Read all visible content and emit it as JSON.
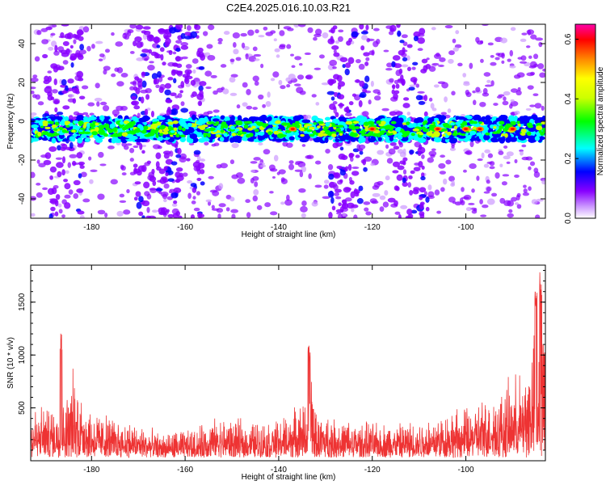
{
  "title": "C2E4.2025.016.10.03.R21",
  "chart_data": [
    {
      "type": "heatmap",
      "xlabel": "Height of straight line (km)",
      "ylabel": "Frequency (Hz)",
      "xlim": [
        -193,
        -83
      ],
      "ylim": [
        -50,
        50
      ],
      "x_ticks": [
        "-180",
        "-160",
        "-140",
        "-120",
        "-100"
      ],
      "y_ticks": [
        "-40",
        "-20",
        "0",
        "20",
        "40"
      ],
      "colorbar": {
        "label": "Normalized spectral amplitude",
        "range": [
          0.0,
          0.65
        ],
        "ticks": [
          "0.0",
          "0.2",
          "0.4",
          "0.6"
        ],
        "colors": [
          "#ffffff",
          "#8800ff",
          "#0000ff",
          "#00ffff",
          "#00ff00",
          "#ffff00",
          "#ff8800",
          "#ff0000",
          "#ff00aa"
        ]
      },
      "band": {
        "center_hz": -4,
        "half_width_hz": 6
      },
      "hotspots_x_km": [
        -137,
        -120,
        -106,
        -100,
        -97,
        -90
      ],
      "vertical_streaks_x_km": [
        -186,
        -167,
        -160,
        -125,
        -112
      ]
    },
    {
      "type": "line",
      "xlabel": "Height of straight line (km)",
      "ylabel": "SNR (10 * v/v)",
      "xlim": [
        -193,
        -83
      ],
      "ylim": [
        0,
        1850
      ],
      "x_ticks": [
        "-180",
        "-160",
        "-140",
        "-120",
        "-100"
      ],
      "y_ticks": [
        "500",
        "1000",
        "1500"
      ],
      "color": "#ee3333",
      "envelope": {
        "x": [
          -193,
          -186,
          -184,
          -180,
          -172,
          -165,
          -158,
          -153,
          -148,
          -140,
          -134,
          -133,
          -132,
          -125,
          -115,
          -105,
          -98,
          -92,
          -88,
          -85,
          -83
        ],
        "y": [
          520,
          560,
          900,
          480,
          380,
          250,
          300,
          420,
          380,
          380,
          600,
          900,
          450,
          380,
          350,
          450,
          550,
          720,
          900,
          1300,
          1500
        ]
      },
      "peaks": [
        {
          "x": -186.5,
          "y": 1220
        },
        {
          "x": -133.5,
          "y": 1100
        },
        {
          "x": -85,
          "y": 1700
        },
        {
          "x": -84,
          "y": 1820
        }
      ]
    }
  ]
}
